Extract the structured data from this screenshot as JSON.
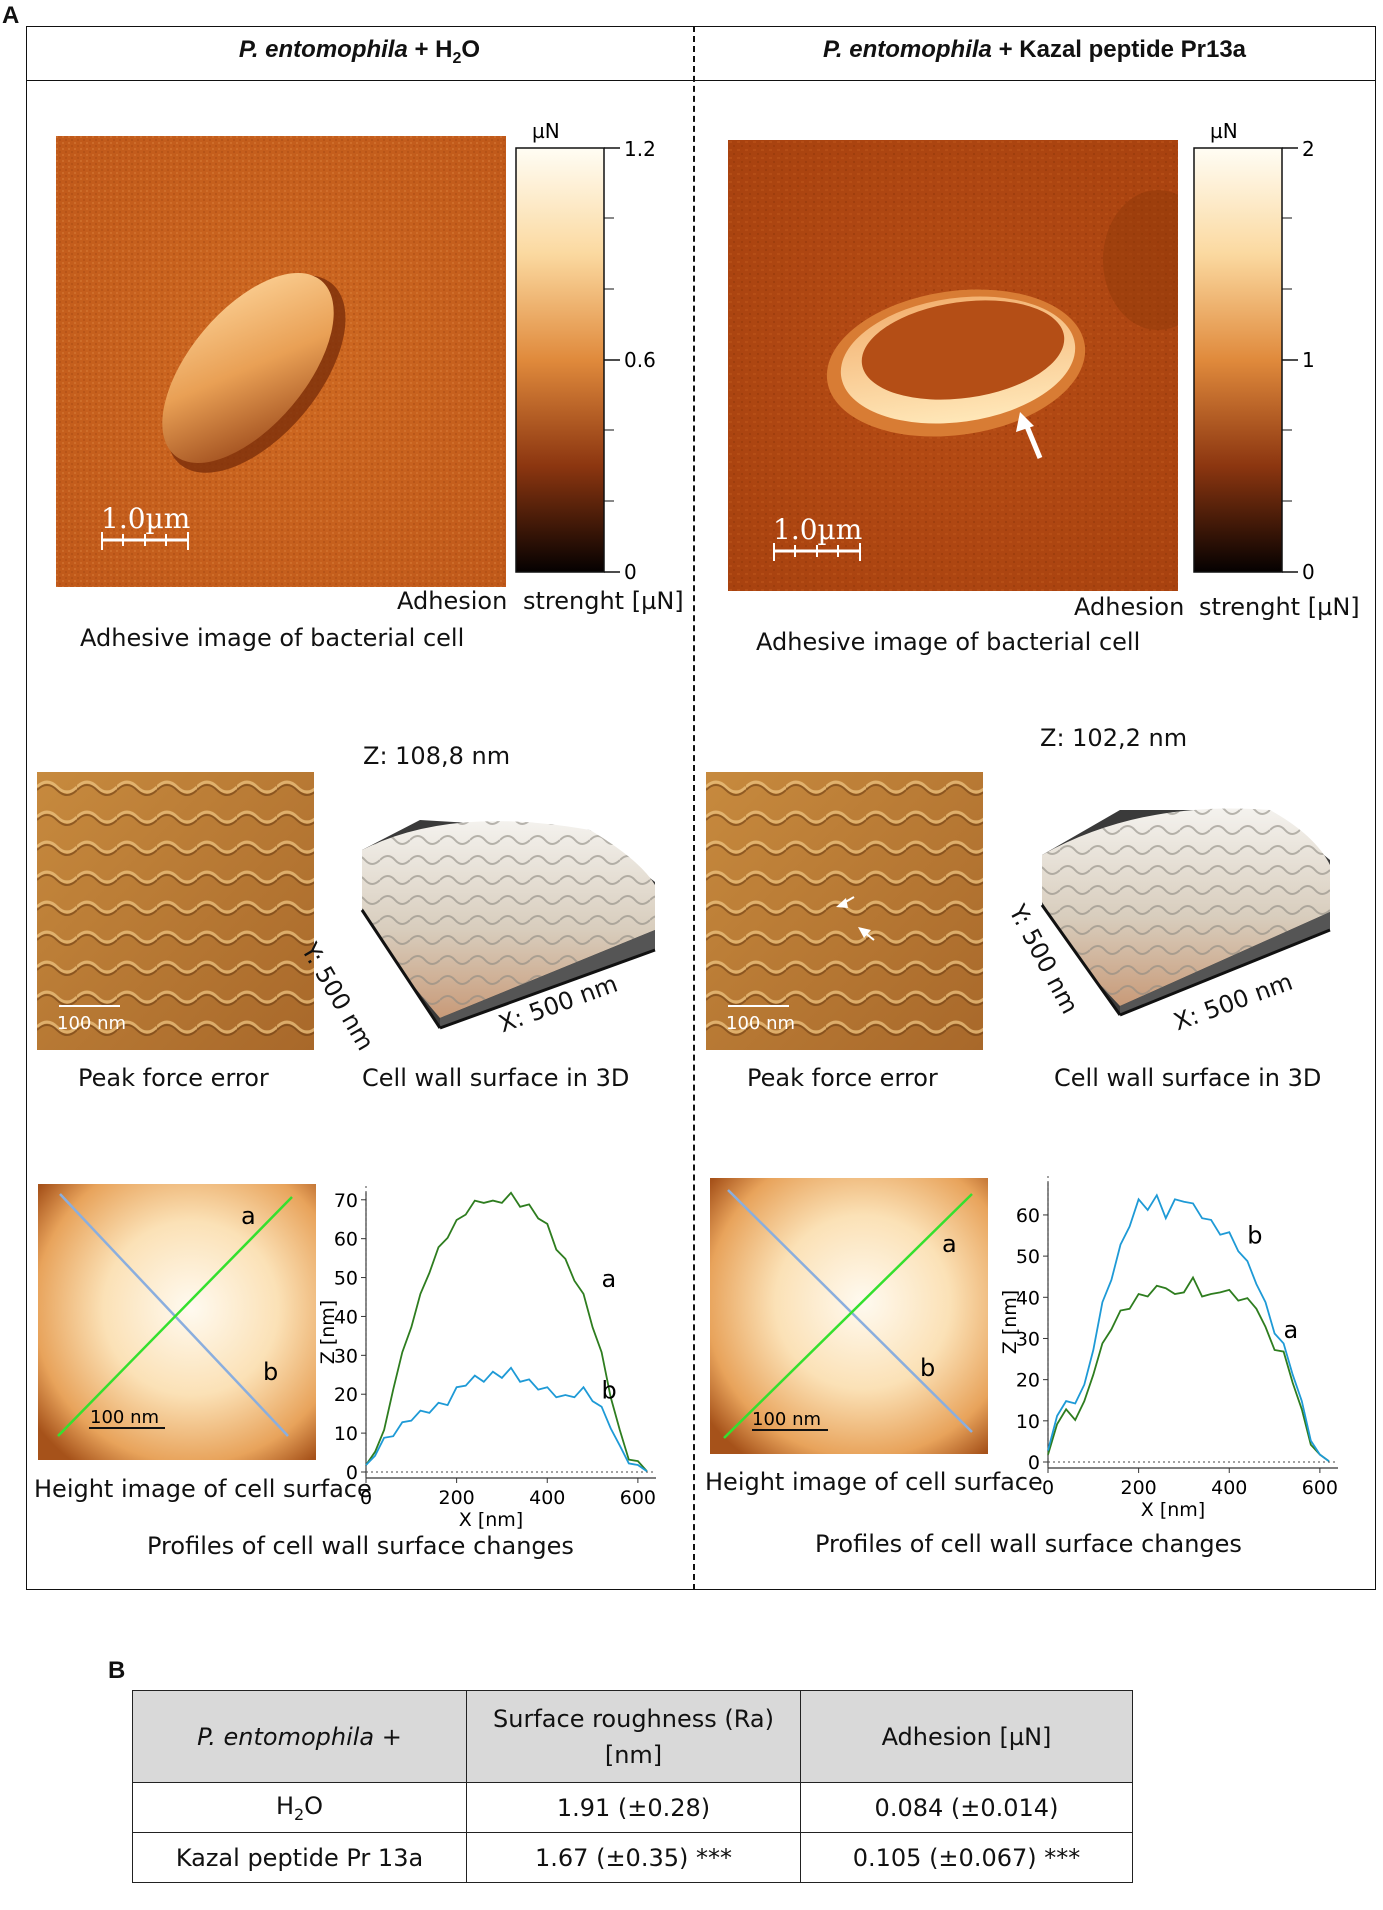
{
  "panel_a_label": "A",
  "panel_b_label": "B",
  "left": {
    "header_species": "P. entomophila",
    "header_plus": " + H",
    "header_sub": "2",
    "header_tail": "O",
    "colorbar_unit": "µN",
    "colorbar_ticks": [
      "1.2",
      "0.6",
      "0"
    ],
    "scale_label": "1.0µm",
    "adhesion_label_1": "Adhesion",
    "adhesion_label_2": "strenght [µN]",
    "adhesive_caption": "Adhesive image of bacterial cell",
    "peak_scale": "100 nm",
    "peak_caption": "Peak force error",
    "z_label": "Z: 108,8 nm",
    "y_label": "Y: 500 nm",
    "x_label": "X: 500 nm",
    "surface_caption": "Cell wall surface in 3D",
    "height_scale": "100 nm",
    "line_a": "a",
    "line_b": "b",
    "height_caption": "Height image of cell surface",
    "profiles_caption": "Profiles of cell wall surface changes"
  },
  "right": {
    "header_species": "P. entomophila",
    "header_tail": " + Kazal peptide Pr13a",
    "colorbar_unit": "µN",
    "colorbar_ticks": [
      "2",
      "1",
      "0"
    ],
    "scale_label": "1.0µm",
    "adhesion_label_1": "Adhesion",
    "adhesion_label_2": "strenght [µN]",
    "adhesive_caption": "Adhesive image of bacterial cell",
    "peak_scale": "100 nm",
    "peak_caption": "Peak force error",
    "z_label": "Z: 102,2 nm",
    "y_label": "Y: 500 nm",
    "x_label": "X: 500 nm",
    "surface_caption": "Cell wall surface in 3D",
    "height_scale": "100 nm",
    "line_a": "a",
    "line_b": "b",
    "height_caption": "Height image of cell surface",
    "profiles_caption": "Profiles of cell wall surface changes"
  },
  "colors": {
    "profile_a": "#2e7d1f",
    "profile_b": "#1e9ad6",
    "afm_orange": "#c8621c",
    "afm_dark": "#9a3a0c"
  },
  "chart_data": [
    {
      "type": "line",
      "xlabel": "X [nm]",
      "ylabel": "Z [nm]",
      "xlim": [
        0,
        640
      ],
      "ylim": [
        0,
        72
      ],
      "xticks": [
        0,
        200,
        400,
        600
      ],
      "yticks": [
        0,
        10,
        20,
        30,
        40,
        50,
        60,
        70
      ],
      "series": [
        {
          "name": "a",
          "x": [
            0,
            20,
            40,
            60,
            80,
            100,
            120,
            140,
            160,
            180,
            200,
            220,
            240,
            260,
            280,
            300,
            320,
            340,
            360,
            380,
            400,
            420,
            440,
            460,
            480,
            500,
            520,
            540,
            560,
            580,
            600,
            620
          ],
          "y": [
            1,
            6,
            10,
            22,
            30,
            38,
            45,
            52,
            57,
            61,
            64,
            67,
            69,
            70,
            69,
            70,
            71,
            69,
            68,
            66,
            63,
            58,
            54,
            50,
            45,
            38,
            30,
            20,
            10,
            4,
            2,
            1
          ]
        },
        {
          "name": "b",
          "x": [
            0,
            20,
            40,
            60,
            80,
            100,
            120,
            140,
            160,
            180,
            200,
            220,
            240,
            260,
            280,
            300,
            320,
            340,
            360,
            380,
            400,
            420,
            440,
            460,
            480,
            500,
            520,
            540,
            560,
            580,
            600,
            620
          ],
          "y": [
            1,
            5,
            8,
            10,
            12,
            14,
            15,
            16,
            17,
            18,
            21,
            23,
            24,
            24,
            25,
            25,
            26,
            24,
            23,
            22,
            21,
            20,
            19,
            20,
            21,
            19,
            16,
            12,
            6,
            3,
            1,
            1
          ]
        }
      ]
    },
    {
      "type": "line",
      "xlabel": "X [nm]",
      "ylabel": "Z [nm]",
      "xlim": [
        0,
        640
      ],
      "ylim": [
        0,
        68
      ],
      "xticks": [
        0,
        200,
        400,
        600
      ],
      "yticks": [
        0,
        10,
        20,
        30,
        40,
        50,
        60
      ],
      "series": [
        {
          "name": "a",
          "x": [
            0,
            20,
            40,
            60,
            80,
            100,
            120,
            140,
            160,
            180,
            200,
            220,
            240,
            260,
            280,
            300,
            320,
            340,
            360,
            380,
            400,
            420,
            440,
            460,
            480,
            500,
            520,
            540,
            560,
            580,
            600,
            620
          ],
          "y": [
            1,
            10,
            12,
            11,
            14,
            22,
            28,
            33,
            36,
            38,
            40,
            41,
            42,
            43,
            40,
            42,
            44,
            41,
            40,
            42,
            41,
            40,
            39,
            38,
            32,
            28,
            26,
            20,
            12,
            5,
            1,
            1
          ]
        },
        {
          "name": "b",
          "x": [
            0,
            20,
            40,
            60,
            80,
            100,
            120,
            140,
            160,
            180,
            200,
            220,
            240,
            260,
            280,
            300,
            320,
            340,
            360,
            380,
            400,
            420,
            440,
            460,
            480,
            500,
            520,
            540,
            560,
            580,
            600,
            620
          ],
          "y": [
            2,
            12,
            14,
            15,
            18,
            28,
            38,
            45,
            52,
            58,
            63,
            62,
            64,
            60,
            63,
            64,
            62,
            60,
            58,
            56,
            55,
            52,
            48,
            44,
            38,
            32,
            28,
            22,
            14,
            6,
            1,
            1
          ]
        }
      ]
    }
  ],
  "table": {
    "headers": [
      "P. entomophila +",
      "Surface roughness (Ra) [nm]",
      "Adhesion [µN]"
    ],
    "header_roughness_1": "Surface roughness (Ra)",
    "header_roughness_2": "[nm]",
    "rows": [
      {
        "label_main": "H",
        "label_sub": "2",
        "label_tail": "O",
        "roughness": "1.91 (±0.28)",
        "adhesion": "0.084 (±0.014)"
      },
      {
        "label_main": "Kazal peptide Pr 13a",
        "roughness": "1.67 (±0.35) ***",
        "adhesion": "0.105 (±0.067) ***"
      }
    ]
  }
}
